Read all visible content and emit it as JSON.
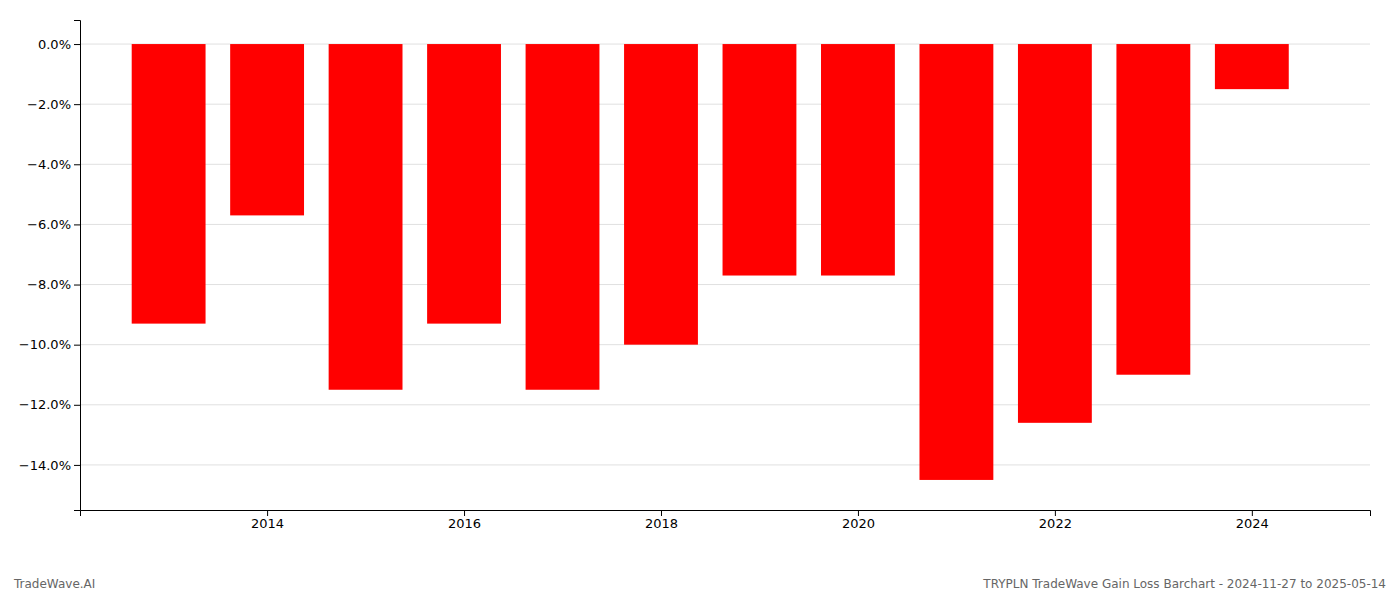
{
  "chart_data": {
    "type": "bar",
    "x": [
      2013,
      2014,
      2015,
      2016,
      2017,
      2018,
      2019,
      2020,
      2021,
      2022,
      2023,
      2024
    ],
    "values": [
      -9.3,
      -5.7,
      -11.5,
      -9.3,
      -11.5,
      -10.0,
      -7.7,
      -7.7,
      -14.5,
      -12.6,
      -11.0,
      -1.5
    ],
    "color": "#FF0000",
    "xlim": [
      2012.1,
      2025.2
    ],
    "xticks": [
      2014,
      2016,
      2018,
      2020,
      2022,
      2024
    ],
    "ylim": [
      -15.5,
      0.8
    ],
    "yticks": [
      {
        "value": 0.0,
        "label": "0.0%"
      },
      {
        "value": -2.0,
        "label": "−2.0%"
      },
      {
        "value": -4.0,
        "label": "−4.0%"
      },
      {
        "value": -6.0,
        "label": "−6.0%"
      },
      {
        "value": -8.0,
        "label": "−8.0%"
      },
      {
        "value": -10.0,
        "label": "−10.0%"
      },
      {
        "value": -12.0,
        "label": "−12.0%"
      },
      {
        "value": -14.0,
        "label": "−14.0%"
      }
    ],
    "grid": true,
    "annotations": [
      "TradeWave.AI",
      "TRYPLN TradeWave Gain Loss Barchart - 2024-11-27 to 2025-05-14"
    ]
  }
}
